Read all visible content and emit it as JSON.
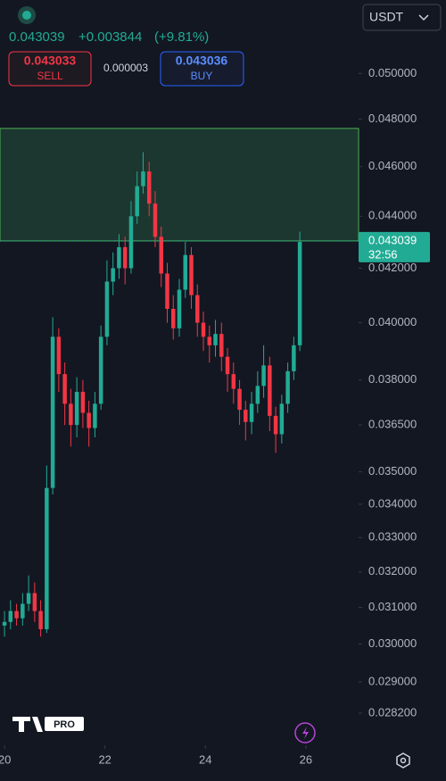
{
  "header": {
    "last": "0.043039",
    "change": "+0.003844",
    "change_pct": "(+9.81%)",
    "sell_price": "0.043033",
    "sell": "SELL",
    "spread": "0.000003",
    "buy_price": "0.043036",
    "buy": "BUY",
    "currency": "USDT",
    "logo": "PRO"
  },
  "chart_data": {
    "type": "candlestick",
    "log_scale": true,
    "up_color": "#22ab94",
    "down_color": "#f23645",
    "xlim": [
      19.91,
      27.05
    ],
    "xticks": [
      20,
      22,
      24,
      26
    ],
    "ylim": [
      0.0274,
      0.0534
    ],
    "yticks": [
      {
        "value": 0.05,
        "label": "0.050000"
      },
      {
        "value": 0.048,
        "label": "0.048000"
      },
      {
        "value": 0.046,
        "label": "0.046000"
      },
      {
        "value": 0.044,
        "label": "0.044000"
      },
      {
        "value": 0.042,
        "label": "0.042000"
      },
      {
        "value": 0.04,
        "label": "0.040000"
      },
      {
        "value": 0.038,
        "label": "0.038000"
      },
      {
        "value": 0.0365,
        "label": "0.036500"
      },
      {
        "value": 0.035,
        "label": "0.035000"
      },
      {
        "value": 0.034,
        "label": "0.034000"
      },
      {
        "value": 0.033,
        "label": "0.033000"
      },
      {
        "value": 0.032,
        "label": "0.032000"
      },
      {
        "value": 0.031,
        "label": "0.031000"
      },
      {
        "value": 0.03,
        "label": "0.030000"
      },
      {
        "value": 0.029,
        "label": "0.029000"
      },
      {
        "value": 0.0282,
        "label": "0.028200"
      }
    ],
    "zone": [
      0.043039,
      0.0476
    ],
    "last_price": 0.043039,
    "countdown": "32:56",
    "candles": {
      "x": [
        20.0,
        20.12,
        20.24,
        20.36,
        20.48,
        20.6,
        20.72,
        20.84,
        20.96,
        21.08,
        21.2,
        21.32,
        21.44,
        21.56,
        21.68,
        21.8,
        21.92,
        22.04,
        22.16,
        22.28,
        22.4,
        22.52,
        22.64,
        22.76,
        22.88,
        23.0,
        23.12,
        23.24,
        23.36,
        23.48,
        23.6,
        23.72,
        23.84,
        23.96,
        24.08,
        24.2,
        24.32,
        24.44,
        24.56,
        24.68,
        24.8,
        24.92,
        25.04,
        25.16,
        25.28,
        25.4,
        25.52,
        25.64,
        25.76,
        25.88
      ],
      "open": [
        0.0305,
        0.0306,
        0.0309,
        0.0307,
        0.0311,
        0.0314,
        0.0309,
        0.0304,
        0.0345,
        0.0395,
        0.0382,
        0.0372,
        0.0365,
        0.0376,
        0.0369,
        0.0364,
        0.0372,
        0.0395,
        0.0415,
        0.042,
        0.0428,
        0.042,
        0.044,
        0.0452,
        0.0458,
        0.0445,
        0.0432,
        0.0418,
        0.0405,
        0.0398,
        0.0412,
        0.0425,
        0.041,
        0.04,
        0.0395,
        0.0392,
        0.0396,
        0.0388,
        0.0382,
        0.0377,
        0.037,
        0.0366,
        0.0372,
        0.0378,
        0.0385,
        0.0368,
        0.0362,
        0.0372,
        0.0383,
        0.0392
      ],
      "high": [
        0.0309,
        0.0312,
        0.0311,
        0.0314,
        0.0319,
        0.0317,
        0.0312,
        0.0352,
        0.0402,
        0.0398,
        0.0386,
        0.0377,
        0.0381,
        0.038,
        0.0373,
        0.0376,
        0.0399,
        0.0423,
        0.0426,
        0.0433,
        0.0432,
        0.0446,
        0.0458,
        0.0466,
        0.0462,
        0.045,
        0.0436,
        0.0422,
        0.041,
        0.0416,
        0.043,
        0.0428,
        0.0414,
        0.0404,
        0.0399,
        0.0401,
        0.04,
        0.0391,
        0.0386,
        0.038,
        0.0373,
        0.0376,
        0.0383,
        0.0392,
        0.0388,
        0.0371,
        0.0375,
        0.0386,
        0.0395,
        0.0434
      ],
      "low": [
        0.0302,
        0.0304,
        0.0305,
        0.0305,
        0.0309,
        0.0306,
        0.0302,
        0.0303,
        0.0343,
        0.0376,
        0.0365,
        0.0358,
        0.0361,
        0.0364,
        0.0358,
        0.0361,
        0.037,
        0.0392,
        0.041,
        0.0416,
        0.0414,
        0.0418,
        0.0437,
        0.0449,
        0.044,
        0.0428,
        0.0413,
        0.04,
        0.0394,
        0.0395,
        0.0409,
        0.0405,
        0.0395,
        0.039,
        0.0386,
        0.0388,
        0.0383,
        0.0376,
        0.0372,
        0.0365,
        0.036,
        0.0362,
        0.0369,
        0.0374,
        0.0363,
        0.0356,
        0.0359,
        0.0369,
        0.038,
        0.039
      ],
      "close": [
        0.0306,
        0.0309,
        0.0307,
        0.0311,
        0.0314,
        0.0309,
        0.0304,
        0.0345,
        0.0395,
        0.0382,
        0.0372,
        0.0365,
        0.0376,
        0.0369,
        0.0364,
        0.0372,
        0.0395,
        0.0415,
        0.042,
        0.0428,
        0.042,
        0.044,
        0.0452,
        0.0458,
        0.0445,
        0.0432,
        0.0418,
        0.0405,
        0.0398,
        0.0412,
        0.0425,
        0.041,
        0.04,
        0.0395,
        0.0392,
        0.0396,
        0.0388,
        0.0382,
        0.0377,
        0.037,
        0.0366,
        0.0372,
        0.0378,
        0.0385,
        0.0368,
        0.0362,
        0.0372,
        0.0383,
        0.0392,
        0.043
      ]
    }
  }
}
